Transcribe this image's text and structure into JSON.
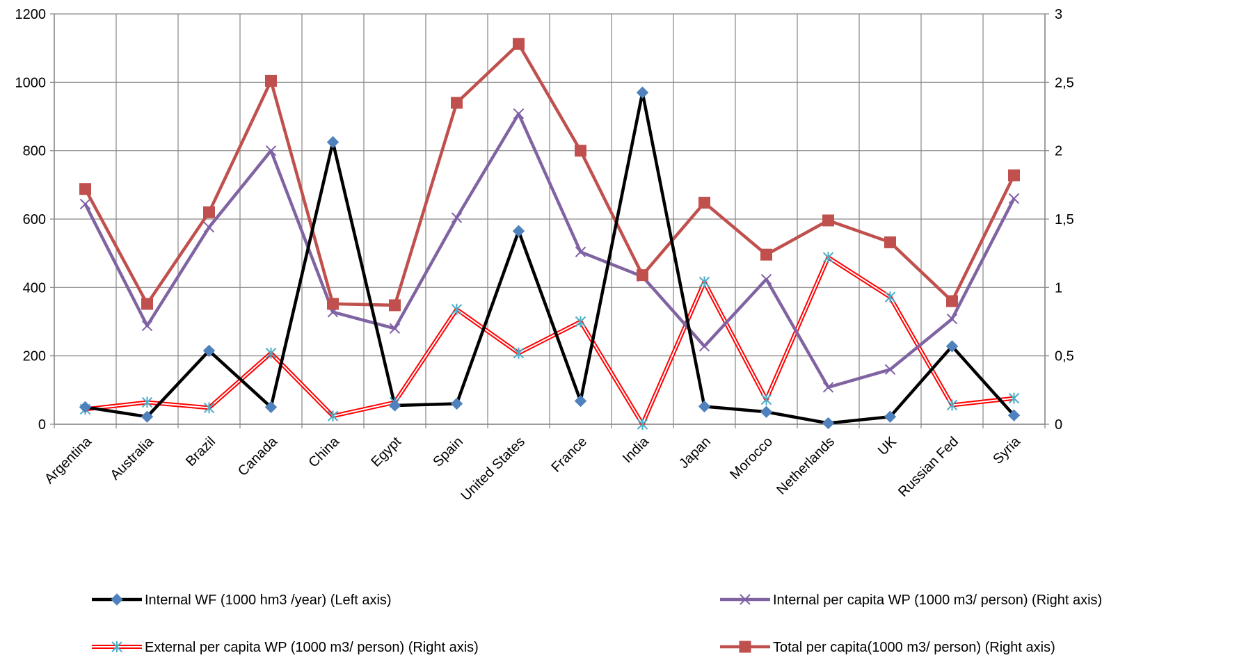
{
  "chart_data": {
    "type": "line",
    "title": "",
    "xlabel": "",
    "ylabel": "",
    "categories": [
      "Argentina",
      "Australia",
      "Brazil",
      "Canada",
      "China",
      "Egypt",
      "Spain",
      "United States",
      "France",
      "India",
      "Japan",
      "Morocco",
      "Netherlands",
      "UK",
      "Russian Fed",
      "Syria"
    ],
    "y_left": {
      "lim": [
        0,
        1200
      ],
      "ticks": [
        0,
        200,
        400,
        600,
        800,
        1000,
        1200
      ],
      "tick_labels": [
        "0",
        "200",
        "400",
        "600",
        "800",
        "1000",
        "1200"
      ]
    },
    "y_right": {
      "lim": [
        0,
        3
      ],
      "ticks": [
        0,
        0.5,
        1,
        1.5,
        2,
        2.5,
        3
      ],
      "tick_labels": [
        "0",
        "0,5",
        "1",
        "1,5",
        "2",
        "2,5",
        "3"
      ]
    },
    "grid": true,
    "legend_position": "bottom",
    "series": [
      {
        "name": "Internal WF (1000 hm3 /year) (Left axis)",
        "axis": "left",
        "color": "#000000",
        "marker_color": "#4f81bd",
        "marker": "diamond",
        "style": "solid",
        "values": [
          50,
          22,
          215,
          50,
          825,
          55,
          60,
          565,
          68,
          970,
          52,
          36,
          3,
          22,
          228,
          26
        ]
      },
      {
        "name": "Internal per capita WP (1000 m3/ person) (Right axis)",
        "axis": "right",
        "color": "#8064a2",
        "marker_color": "#7f60a8",
        "marker": "x",
        "style": "solid",
        "values": [
          1.61,
          0.72,
          1.44,
          2.0,
          0.82,
          0.7,
          1.51,
          2.27,
          1.26,
          1.08,
          0.57,
          1.06,
          0.27,
          0.4,
          0.77,
          1.65
        ]
      },
      {
        "name": "External per capita WP (1000 m3/ person) (Right axis)",
        "axis": "right",
        "color": "#ff0000",
        "marker_color": "#4bacc6",
        "marker": "asterisk",
        "style": "double",
        "values": [
          0.11,
          0.16,
          0.12,
          0.52,
          0.06,
          0.16,
          0.84,
          0.52,
          0.75,
          0.0,
          1.04,
          0.18,
          1.22,
          0.93,
          0.14,
          0.19
        ]
      },
      {
        "name": "Total per capita(1000 m3/ person) (Right axis)",
        "axis": "right",
        "color": "#c0504d",
        "marker_color": "#c0504d",
        "marker": "square",
        "style": "solid",
        "values": [
          1.72,
          0.88,
          1.55,
          2.51,
          0.88,
          0.87,
          2.35,
          2.78,
          2.0,
          1.09,
          1.62,
          1.24,
          1.49,
          1.33,
          0.9,
          1.82
        ]
      }
    ],
    "legend_order": [
      0,
      1,
      2,
      3
    ]
  }
}
